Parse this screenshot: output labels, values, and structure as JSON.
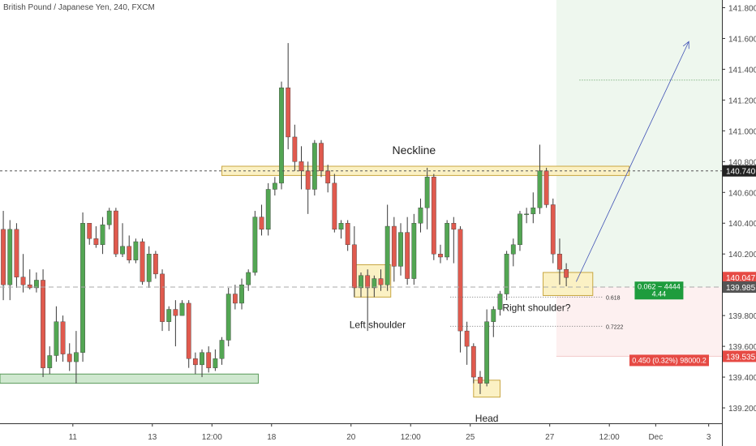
{
  "chart_data": {
    "type": "candlestick",
    "title": "British Pound / Japanese Yen, 240, FXCM",
    "x_ticks": [
      {
        "label": "11",
        "bar": 11
      },
      {
        "label": "13",
        "bar": 23
      },
      {
        "label": "12:00",
        "bar": 32
      },
      {
        "label": "18",
        "bar": 41
      },
      {
        "label": "20",
        "bar": 53
      },
      {
        "label": "12:00",
        "bar": 62
      },
      {
        "label": "25",
        "bar": 71
      },
      {
        "label": "27",
        "bar": 83
      },
      {
        "label": "12:00",
        "bar": 92
      },
      {
        "label": "Dec",
        "bar": 99
      },
      {
        "label": "3",
        "bar": 107
      }
    ],
    "y_ticks": [
      139.2,
      139.4,
      139.6,
      139.8,
      140.0,
      140.2,
      140.4,
      140.6,
      140.8,
      141.0,
      141.2,
      141.4,
      141.6,
      141.8
    ],
    "ylim": [
      139.1,
      141.85
    ],
    "xlim": [
      0,
      109
    ],
    "colors": {
      "up": "#53a653",
      "down": "#e05a4e",
      "wick": "#3a3a3a"
    },
    "candles": [
      {
        "o": 140.36,
        "h": 140.48,
        "l": 139.9,
        "c": 140.0
      },
      {
        "o": 140.0,
        "h": 140.42,
        "l": 139.9,
        "c": 140.36
      },
      {
        "o": 140.36,
        "h": 140.4,
        "l": 139.98,
        "c": 140.05
      },
      {
        "o": 140.05,
        "h": 140.2,
        "l": 139.95,
        "c": 140.0
      },
      {
        "o": 140.0,
        "h": 140.1,
        "l": 139.97,
        "c": 139.98
      },
      {
        "o": 139.98,
        "h": 140.08,
        "l": 139.95,
        "c": 140.03
      },
      {
        "o": 140.03,
        "h": 140.1,
        "l": 139.4,
        "c": 139.46
      },
      {
        "o": 139.46,
        "h": 139.6,
        "l": 139.42,
        "c": 139.54
      },
      {
        "o": 139.54,
        "h": 139.86,
        "l": 139.5,
        "c": 139.76
      },
      {
        "o": 139.76,
        "h": 139.8,
        "l": 139.5,
        "c": 139.55
      },
      {
        "o": 139.55,
        "h": 139.62,
        "l": 139.44,
        "c": 139.5
      },
      {
        "o": 139.5,
        "h": 139.7,
        "l": 139.36,
        "c": 139.56
      },
      {
        "o": 139.56,
        "h": 140.47,
        "l": 139.5,
        "c": 140.4
      },
      {
        "o": 140.4,
        "h": 140.4,
        "l": 140.26,
        "c": 140.3
      },
      {
        "o": 140.3,
        "h": 140.38,
        "l": 140.24,
        "c": 140.26
      },
      {
        "o": 140.26,
        "h": 140.44,
        "l": 140.2,
        "c": 140.39
      },
      {
        "o": 140.39,
        "h": 140.5,
        "l": 140.36,
        "c": 140.48
      },
      {
        "o": 140.48,
        "h": 140.5,
        "l": 140.18,
        "c": 140.2
      },
      {
        "o": 140.2,
        "h": 140.4,
        "l": 140.18,
        "c": 140.25
      },
      {
        "o": 140.25,
        "h": 140.32,
        "l": 140.14,
        "c": 140.16
      },
      {
        "o": 140.16,
        "h": 140.3,
        "l": 140.14,
        "c": 140.28
      },
      {
        "o": 140.28,
        "h": 140.3,
        "l": 140.0,
        "c": 140.02
      },
      {
        "o": 140.02,
        "h": 140.25,
        "l": 139.98,
        "c": 140.2
      },
      {
        "o": 140.2,
        "h": 140.22,
        "l": 140.04,
        "c": 140.07
      },
      {
        "o": 140.07,
        "h": 140.1,
        "l": 139.7,
        "c": 139.76
      },
      {
        "o": 139.76,
        "h": 139.86,
        "l": 139.7,
        "c": 139.84
      },
      {
        "o": 139.84,
        "h": 139.9,
        "l": 139.6,
        "c": 139.8
      },
      {
        "o": 139.8,
        "h": 139.9,
        "l": 139.8,
        "c": 139.88
      },
      {
        "o": 139.88,
        "h": 139.9,
        "l": 139.46,
        "c": 139.52
      },
      {
        "o": 139.52,
        "h": 139.56,
        "l": 139.42,
        "c": 139.48
      },
      {
        "o": 139.48,
        "h": 139.58,
        "l": 139.4,
        "c": 139.56
      },
      {
        "o": 139.56,
        "h": 139.6,
        "l": 139.43,
        "c": 139.46
      },
      {
        "o": 139.46,
        "h": 139.58,
        "l": 139.44,
        "c": 139.52
      },
      {
        "o": 139.52,
        "h": 139.66,
        "l": 139.48,
        "c": 139.64
      },
      {
        "o": 139.64,
        "h": 139.98,
        "l": 139.6,
        "c": 139.94
      },
      {
        "o": 139.94,
        "h": 140.0,
        "l": 139.84,
        "c": 139.88
      },
      {
        "o": 139.88,
        "h": 140.04,
        "l": 139.84,
        "c": 140.0
      },
      {
        "o": 140.0,
        "h": 140.1,
        "l": 139.96,
        "c": 140.08
      },
      {
        "o": 140.08,
        "h": 140.48,
        "l": 140.06,
        "c": 140.44
      },
      {
        "o": 140.44,
        "h": 140.52,
        "l": 140.32,
        "c": 140.36
      },
      {
        "o": 140.36,
        "h": 140.66,
        "l": 140.32,
        "c": 140.62
      },
      {
        "o": 140.62,
        "h": 140.7,
        "l": 140.58,
        "c": 140.66
      },
      {
        "o": 140.66,
        "h": 141.32,
        "l": 140.62,
        "c": 141.28
      },
      {
        "o": 141.28,
        "h": 141.57,
        "l": 140.88,
        "c": 140.96
      },
      {
        "o": 140.96,
        "h": 141.04,
        "l": 140.74,
        "c": 140.8
      },
      {
        "o": 140.8,
        "h": 140.9,
        "l": 140.62,
        "c": 140.74
      },
      {
        "o": 140.74,
        "h": 140.8,
        "l": 140.46,
        "c": 140.62
      },
      {
        "o": 140.62,
        "h": 140.94,
        "l": 140.58,
        "c": 140.92
      },
      {
        "o": 140.92,
        "h": 140.94,
        "l": 140.7,
        "c": 140.74
      },
      {
        "o": 140.74,
        "h": 140.78,
        "l": 140.6,
        "c": 140.66
      },
      {
        "o": 140.66,
        "h": 140.72,
        "l": 140.34,
        "c": 140.36
      },
      {
        "o": 140.36,
        "h": 140.42,
        "l": 140.3,
        "c": 140.4
      },
      {
        "o": 140.4,
        "h": 140.42,
        "l": 140.22,
        "c": 140.26
      },
      {
        "o": 140.26,
        "h": 140.38,
        "l": 139.92,
        "c": 139.98
      },
      {
        "o": 139.98,
        "h": 140.08,
        "l": 139.92,
        "c": 140.06
      },
      {
        "o": 140.06,
        "h": 140.1,
        "l": 139.7,
        "c": 139.98
      },
      {
        "o": 139.98,
        "h": 140.06,
        "l": 139.92,
        "c": 140.04
      },
      {
        "o": 140.04,
        "h": 140.1,
        "l": 139.96,
        "c": 140.0
      },
      {
        "o": 140.0,
        "h": 140.52,
        "l": 139.96,
        "c": 140.38
      },
      {
        "o": 140.38,
        "h": 140.44,
        "l": 140.02,
        "c": 140.12
      },
      {
        "o": 140.12,
        "h": 140.4,
        "l": 140.06,
        "c": 140.34
      },
      {
        "o": 140.34,
        "h": 140.44,
        "l": 140.0,
        "c": 140.04
      },
      {
        "o": 140.04,
        "h": 140.46,
        "l": 140.0,
        "c": 140.4
      },
      {
        "o": 140.4,
        "h": 140.56,
        "l": 140.34,
        "c": 140.5
      },
      {
        "o": 140.5,
        "h": 140.76,
        "l": 140.36,
        "c": 140.7
      },
      {
        "o": 140.7,
        "h": 140.72,
        "l": 140.16,
        "c": 140.2
      },
      {
        "o": 140.2,
        "h": 140.26,
        "l": 140.14,
        "c": 140.18
      },
      {
        "o": 140.18,
        "h": 140.42,
        "l": 140.16,
        "c": 140.4
      },
      {
        "o": 140.4,
        "h": 140.44,
        "l": 140.14,
        "c": 140.36
      },
      {
        "o": 140.36,
        "h": 140.38,
        "l": 139.56,
        "c": 139.7
      },
      {
        "o": 139.7,
        "h": 139.76,
        "l": 139.48,
        "c": 139.6
      },
      {
        "o": 139.6,
        "h": 139.62,
        "l": 139.36,
        "c": 139.4
      },
      {
        "o": 139.4,
        "h": 139.44,
        "l": 139.29,
        "c": 139.36
      },
      {
        "o": 139.36,
        "h": 139.84,
        "l": 139.34,
        "c": 139.76
      },
      {
        "o": 139.76,
        "h": 139.86,
        "l": 139.66,
        "c": 139.84
      },
      {
        "o": 139.84,
        "h": 139.96,
        "l": 139.8,
        "c": 139.94
      },
      {
        "o": 139.94,
        "h": 140.22,
        "l": 139.9,
        "c": 140.2
      },
      {
        "o": 140.2,
        "h": 140.3,
        "l": 140.12,
        "c": 140.26
      },
      {
        "o": 140.26,
        "h": 140.48,
        "l": 140.22,
        "c": 140.46
      },
      {
        "o": 140.46,
        "h": 140.5,
        "l": 140.4,
        "c": 140.46
      },
      {
        "o": 140.46,
        "h": 140.6,
        "l": 140.4,
        "c": 140.5
      },
      {
        "o": 140.5,
        "h": 140.91,
        "l": 140.46,
        "c": 140.74
      },
      {
        "o": 140.74,
        "h": 140.76,
        "l": 140.5,
        "c": 140.52
      },
      {
        "o": 140.52,
        "h": 140.56,
        "l": 140.14,
        "c": 140.2
      },
      {
        "o": 140.2,
        "h": 140.3,
        "l": 140.0,
        "c": 140.1
      },
      {
        "o": 140.1,
        "h": 140.14,
        "l": 139.99,
        "c": 140.047
      }
    ],
    "last_price_label": "140.047",
    "current_price_label": "139.985",
    "neckline_price_label": "140.740",
    "stop_price_label": "139.535",
    "neckline_price": 140.74,
    "last_price": 140.047,
    "current_price": 139.985,
    "stop_price": 139.535,
    "annotations": {
      "neckline": "Neckline",
      "left_shoulder": "Left shoulder",
      "head": "Head",
      "right_shoulder": "Right shoulder?",
      "fib_618": "0.618",
      "fib_7222": "0.7222"
    },
    "fib_levels": {
      "fib_618": 139.92,
      "fib_7222": 139.73
    },
    "target_level": 141.33,
    "target_arrow": {
      "from_bar": 87,
      "from_price": 140.02,
      "to_bar": 104,
      "to_price": 141.58
    },
    "position": {
      "start_bar": 84,
      "end_bar": 109,
      "entry": 139.985,
      "target_top": 141.85,
      "stop": 139.535,
      "reward_text": "0.062 ~ 4444",
      "reward_sub": "4.44",
      "risk_text": "0.450 (0.32%) 98000.2"
    },
    "zones": {
      "neckline_band": {
        "from_bar": 33.5,
        "to_bar": 95,
        "low": 140.71,
        "high": 140.77
      },
      "support_band": {
        "from_bar": 0,
        "to_bar": 39,
        "low": 139.36,
        "high": 139.42
      },
      "left_shoulder_box": {
        "from_bar": 53.5,
        "to_bar": 59,
        "low": 139.92,
        "high": 140.13
      },
      "head_box": {
        "from_bar": 71.5,
        "to_bar": 75.5,
        "low": 139.27,
        "high": 139.38
      },
      "right_shoulder_box": {
        "from_bar": 82,
        "to_bar": 89.5,
        "low": 139.93,
        "high": 140.08
      }
    }
  }
}
